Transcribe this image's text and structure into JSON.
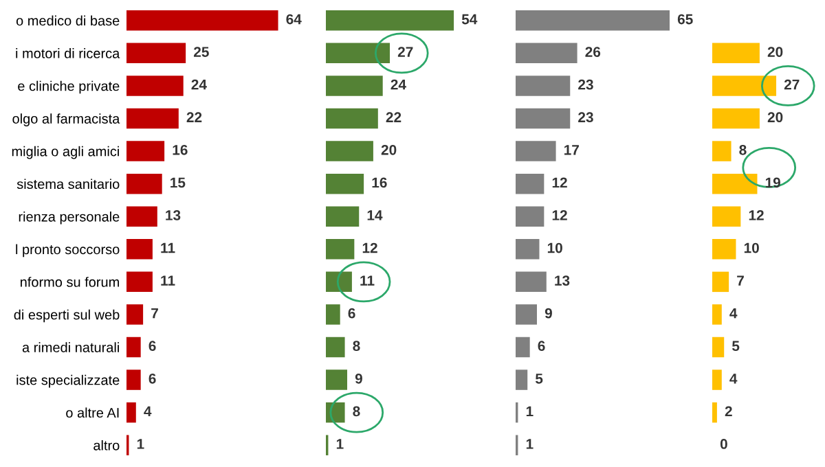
{
  "chart_data": [
    {
      "type": "bar",
      "orientation": "horizontal",
      "categories": [
        "o medico di base",
        "i motori di ricerca",
        "e cliniche private",
        "olgo al farmacista",
        "miglia o agli amici",
        "sistema sanitario",
        "rienza personale",
        "l pronto soccorso",
        "nformo su forum",
        "di esperti sul web",
        "a rimedi naturali",
        "iste specializzate",
        "o altre AI",
        "altro"
      ],
      "values": [
        64,
        25,
        24,
        22,
        16,
        15,
        13,
        11,
        11,
        7,
        6,
        6,
        4,
        1
      ],
      "color": "#c00000",
      "data_labels": true
    },
    {
      "type": "bar",
      "orientation": "horizontal",
      "categories": [
        null,
        null,
        null,
        null,
        null,
        null,
        null,
        null,
        null,
        null,
        null,
        null,
        null,
        null
      ],
      "values": [
        54,
        27,
        24,
        22,
        20,
        16,
        14,
        12,
        11,
        6,
        8,
        9,
        8,
        1
      ],
      "color": "#548235",
      "data_labels": true
    },
    {
      "type": "bar",
      "orientation": "horizontal",
      "categories": [
        null,
        null,
        null,
        null,
        null,
        null,
        null,
        null,
        null,
        null,
        null,
        null,
        null,
        null
      ],
      "values": [
        65,
        26,
        23,
        23,
        17,
        12,
        12,
        10,
        13,
        9,
        6,
        5,
        1,
        1
      ],
      "color": "#808080",
      "data_labels": true
    },
    {
      "type": "bar",
      "orientation": "horizontal",
      "categories": [
        null,
        null,
        null,
        null,
        null,
        null,
        null,
        null,
        null,
        null,
        null,
        null,
        null,
        null
      ],
      "values": [
        null,
        20,
        27,
        20,
        8,
        19,
        12,
        10,
        7,
        4,
        5,
        4,
        2,
        0
      ],
      "color": "#ffc000",
      "data_labels": true
    }
  ]
}
